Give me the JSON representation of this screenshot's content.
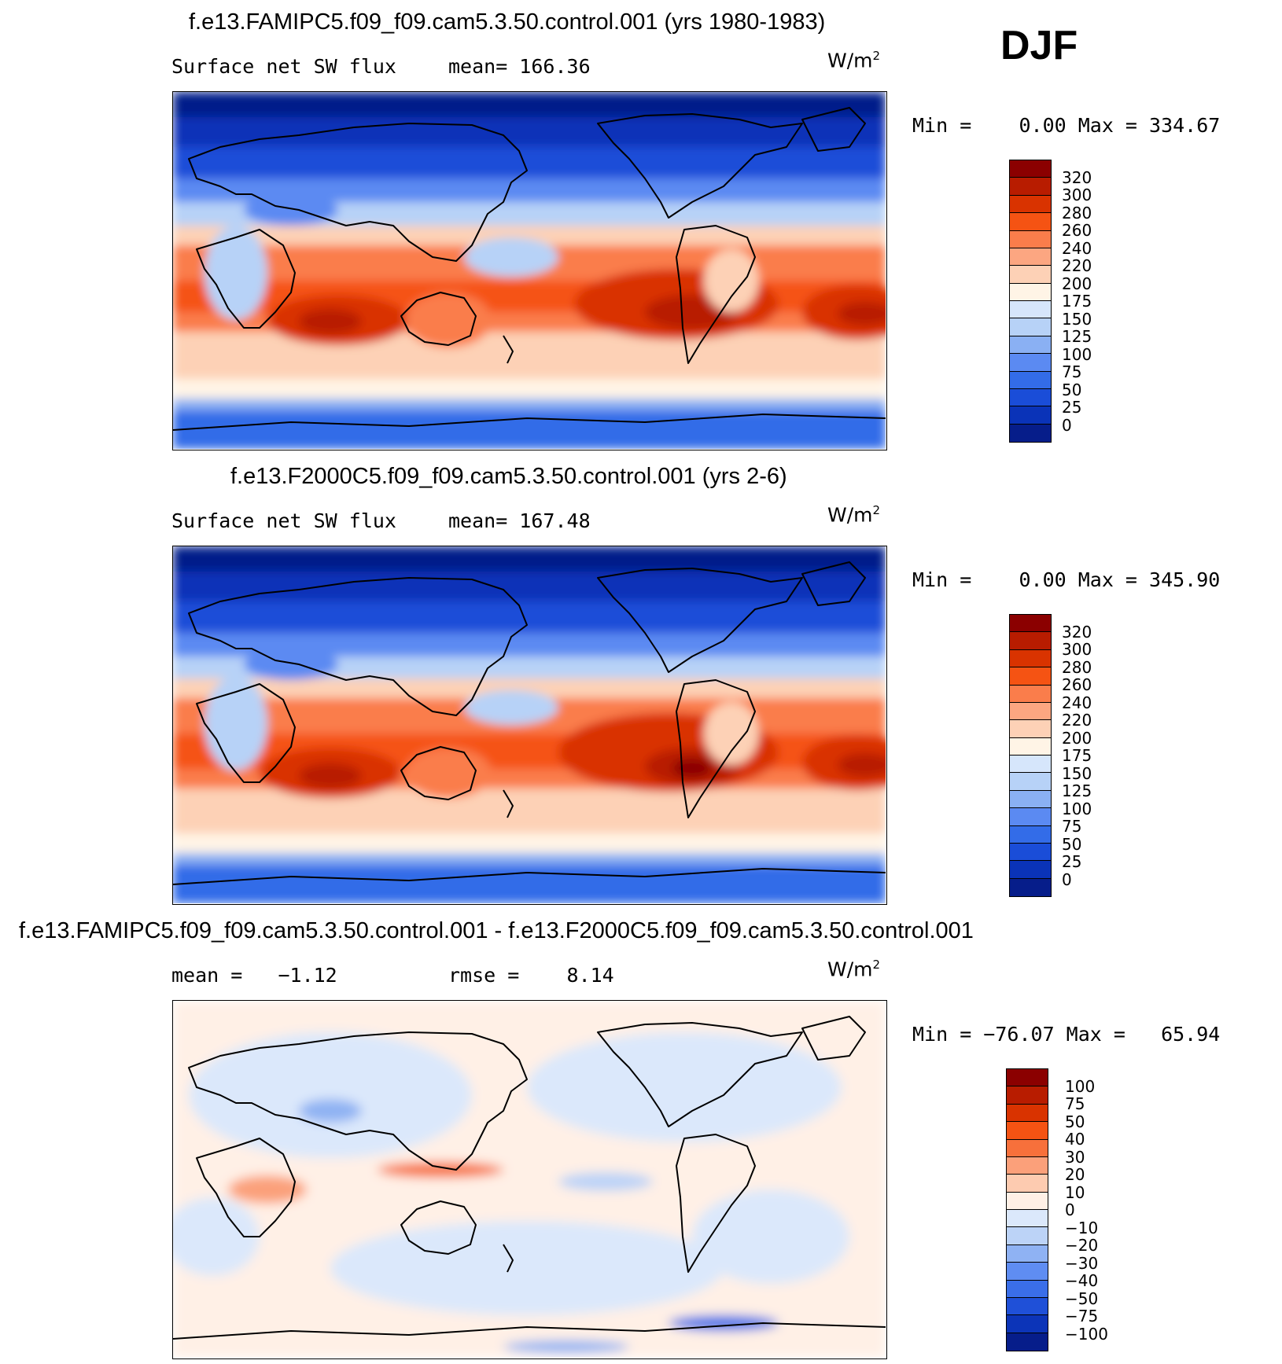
{
  "season": "DJF",
  "panels": [
    {
      "title": "f.e13.FAMIPC5.f09_f09.cam5.3.50.control.001 (yrs 1980-1983)",
      "left_label": "Surface net SW flux",
      "mid_label": "mean= 166.36",
      "units": "W/m",
      "units_exp": "2",
      "minmax": "Min =    0.00 Max = 334.67",
      "colorbar": {
        "colors": [
          "#8b0000",
          "#b81c00",
          "#d93300",
          "#f55313",
          "#fa7d4b",
          "#fca681",
          "#fdd1b6",
          "#fff4e6",
          "#d6e6fb",
          "#b7d2f7",
          "#8ab0f3",
          "#5b8af2",
          "#336ce8",
          "#1a4dd8",
          "#0a33b8",
          "#061d8a"
        ],
        "labels": [
          "320",
          "300",
          "280",
          "260",
          "240",
          "220",
          "200",
          "175",
          "150",
          "125",
          "100",
          "75",
          "50",
          "25",
          "0"
        ]
      }
    },
    {
      "title": "f.e13.F2000C5.f09_f09.cam5.3.50.control.001 (yrs 2-6)",
      "left_label": "Surface net SW flux",
      "mid_label": "mean= 167.48",
      "units": "W/m",
      "units_exp": "2",
      "minmax": "Min =    0.00 Max = 345.90",
      "colorbar": {
        "colors": [
          "#8b0000",
          "#b81c00",
          "#d93300",
          "#f55313",
          "#fa7d4b",
          "#fca681",
          "#fdd1b6",
          "#fff4e6",
          "#d6e6fb",
          "#b7d2f7",
          "#8ab0f3",
          "#5b8af2",
          "#336ce8",
          "#1a4dd8",
          "#0a33b8",
          "#061d8a"
        ],
        "labels": [
          "320",
          "300",
          "280",
          "260",
          "240",
          "220",
          "200",
          "175",
          "150",
          "125",
          "100",
          "75",
          "50",
          "25",
          "0"
        ]
      }
    },
    {
      "title": "f.e13.FAMIPC5.f09_f09.cam5.3.50.control.001 - f.e13.F2000C5.f09_f09.cam5.3.50.control.001",
      "left_label": "mean =   −1.12",
      "mid_label": "rmse =    8.14",
      "units": "W/m",
      "units_exp": "2",
      "minmax": "Min = −76.07 Max =   65.94",
      "colorbar": {
        "colors": [
          "#8b0000",
          "#b81c00",
          "#d93300",
          "#f55313",
          "#f7703b",
          "#fba07a",
          "#fdcbb0",
          "#fff0e6",
          "#dbe8fb",
          "#bcd3f7",
          "#8fb2f3",
          "#5f8df2",
          "#3a6ee8",
          "#1f50d8",
          "#0c34b8",
          "#061d8a"
        ],
        "labels": [
          "100",
          "75",
          "50",
          "40",
          "30",
          "20",
          "10",
          "0",
          "−10",
          "−20",
          "−30",
          "−40",
          "−50",
          "−75",
          "−100"
        ]
      }
    }
  ]
}
